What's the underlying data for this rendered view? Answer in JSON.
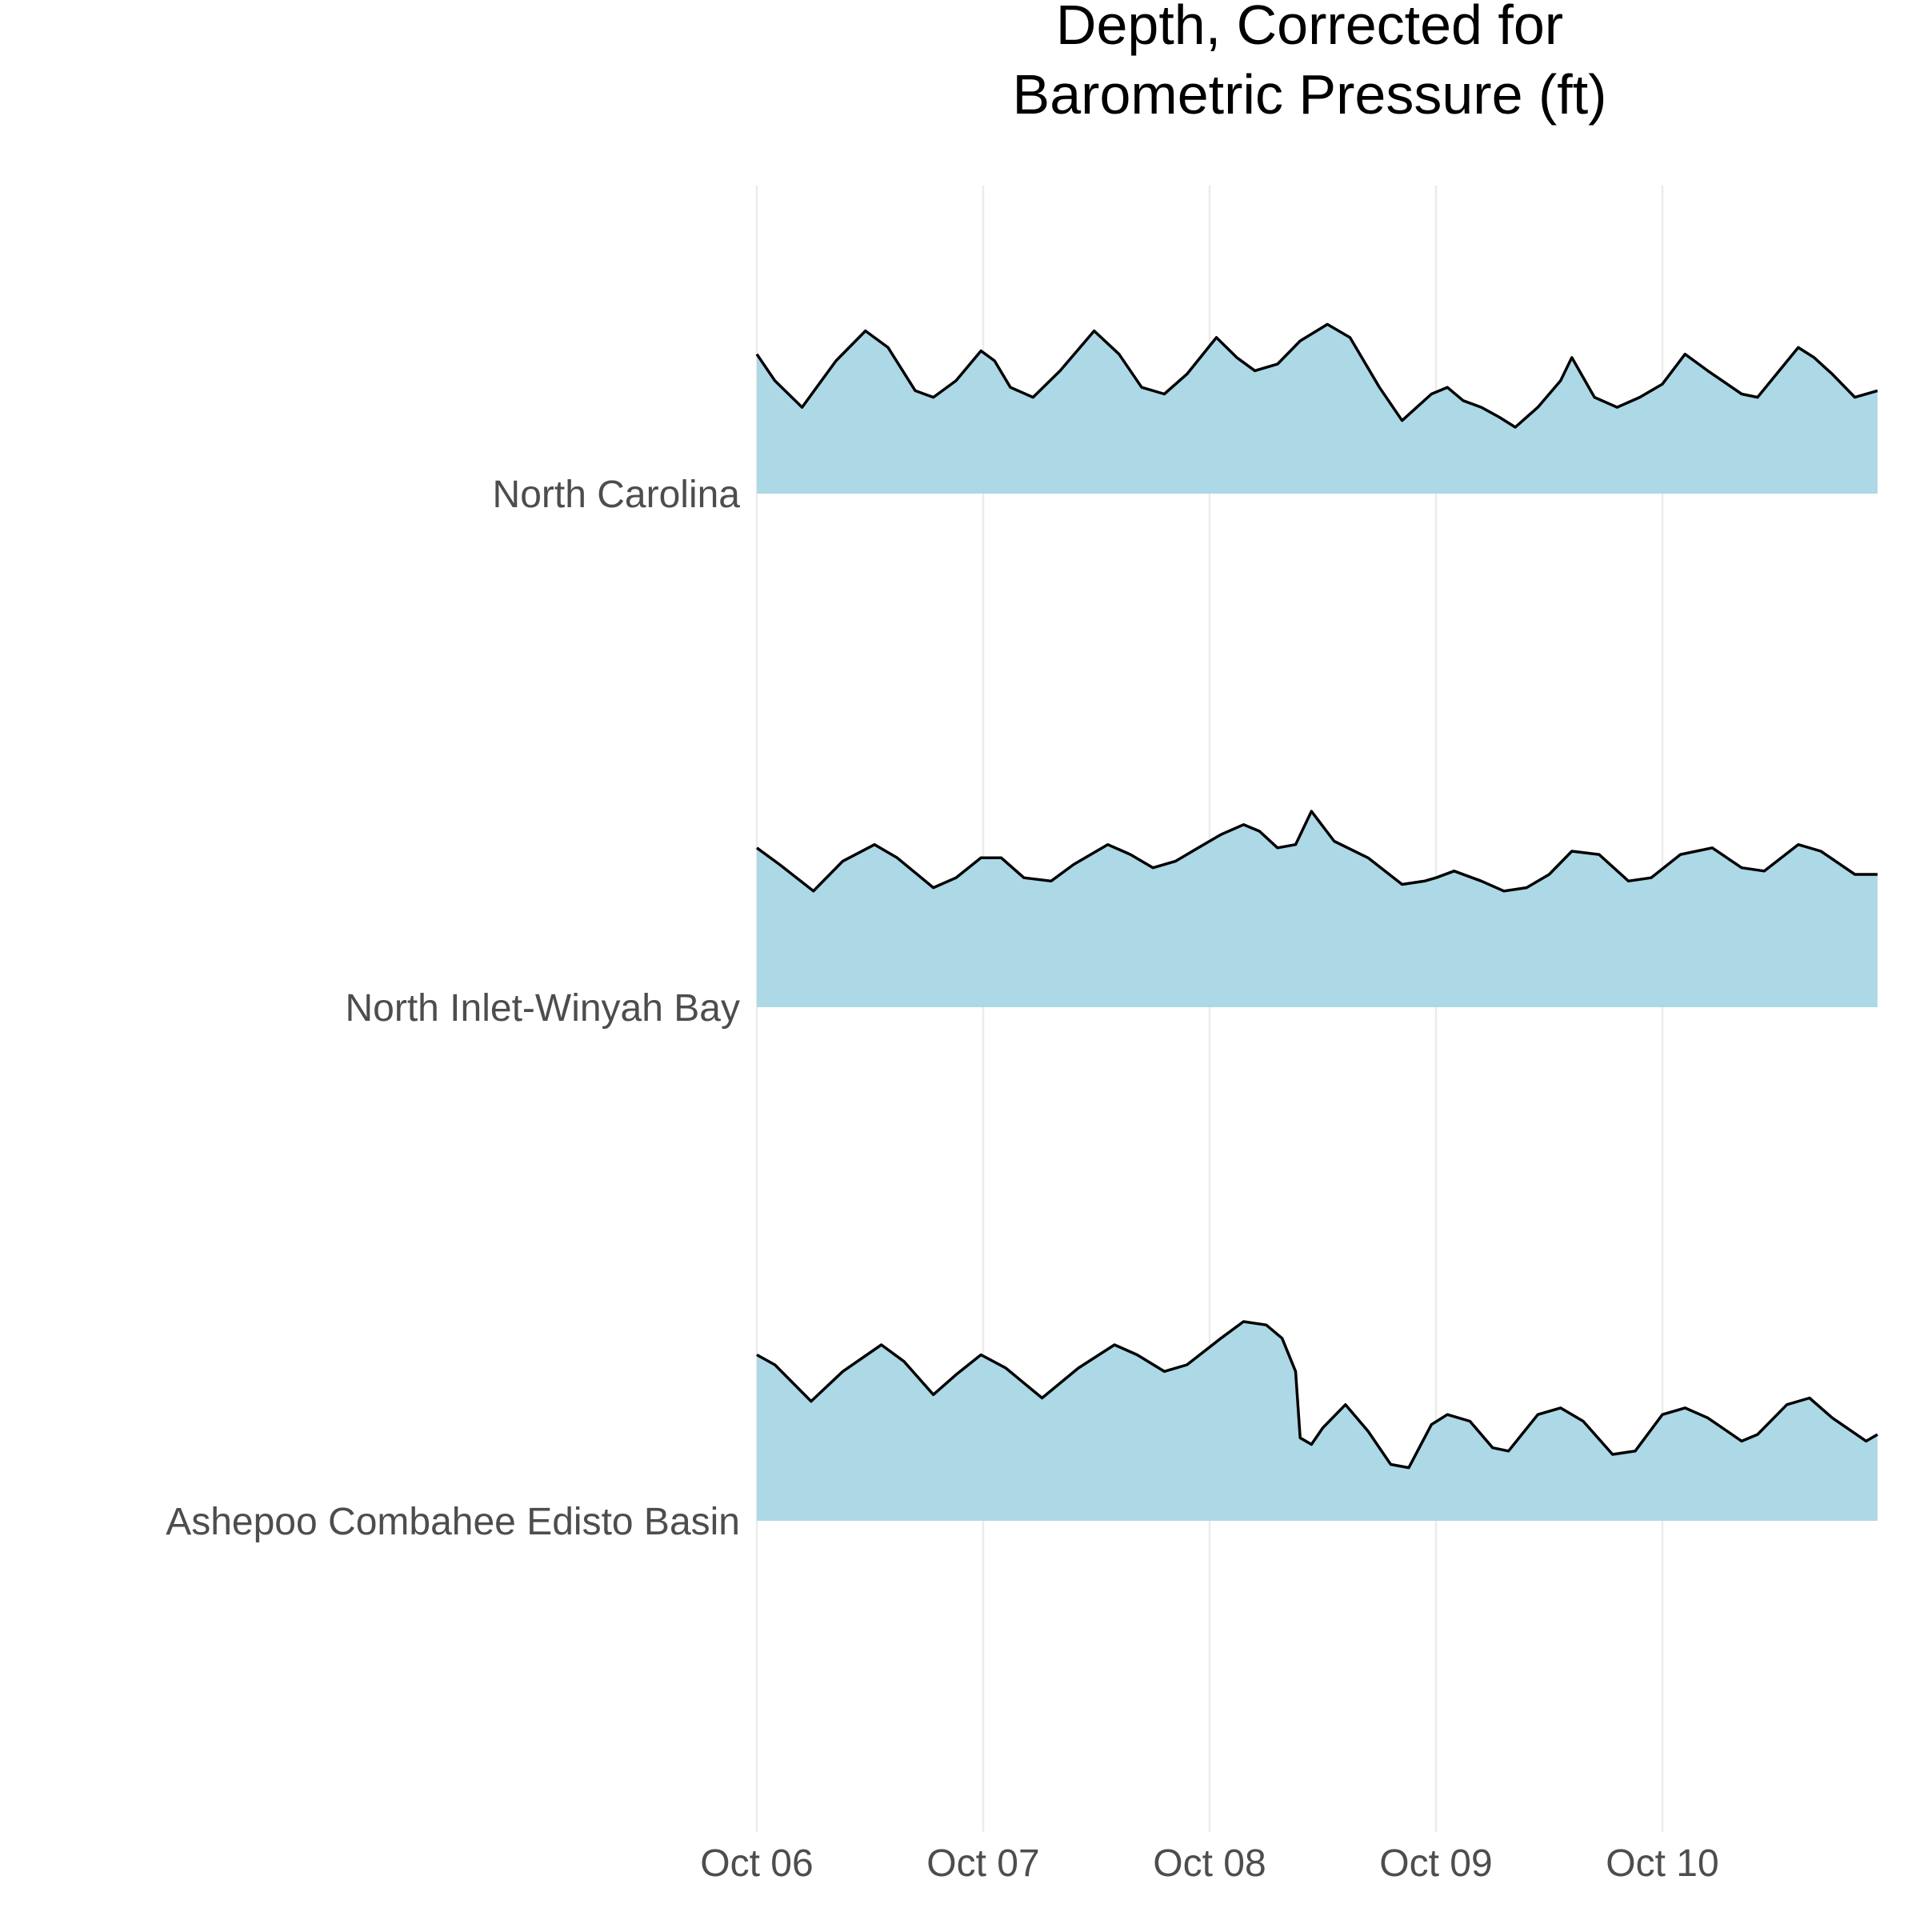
{
  "chart_data": {
    "type": "area",
    "subtype": "ridgeline",
    "title_lines": [
      "Depth, Corrected for",
      "Barometric Pressure (ft)"
    ],
    "x_ticks": [
      "Oct 06",
      "Oct 07",
      "Oct 08",
      "Oct 09",
      "Oct 10"
    ],
    "x_range_days": [
      "Oct 06",
      "Oct 10 ~23:00"
    ],
    "grid": "vertical-only",
    "fill_color": "#add8e6",
    "line_color": "#000000",
    "series": [
      {
        "name": "North Carolina",
        "points": [
          [
            0.0,
            4.2
          ],
          [
            0.08,
            3.4
          ],
          [
            0.2,
            2.6
          ],
          [
            0.35,
            4.0
          ],
          [
            0.48,
            4.9
          ],
          [
            0.58,
            4.4
          ],
          [
            0.7,
            3.1
          ],
          [
            0.78,
            2.9
          ],
          [
            0.88,
            3.4
          ],
          [
            0.99,
            4.3
          ],
          [
            1.05,
            4.0
          ],
          [
            1.12,
            3.2
          ],
          [
            1.22,
            2.9
          ],
          [
            1.34,
            3.7
          ],
          [
            1.49,
            4.9
          ],
          [
            1.6,
            4.2
          ],
          [
            1.7,
            3.2
          ],
          [
            1.8,
            3.0
          ],
          [
            1.9,
            3.6
          ],
          [
            2.03,
            4.7
          ],
          [
            2.12,
            4.1
          ],
          [
            2.2,
            3.7
          ],
          [
            2.3,
            3.9
          ],
          [
            2.4,
            4.6
          ],
          [
            2.52,
            5.1
          ],
          [
            2.62,
            4.7
          ],
          [
            2.75,
            3.2
          ],
          [
            2.85,
            2.2
          ],
          [
            2.98,
            3.0
          ],
          [
            3.05,
            3.2
          ],
          [
            3.12,
            2.8
          ],
          [
            3.2,
            2.6
          ],
          [
            3.28,
            2.3
          ],
          [
            3.35,
            2.0
          ],
          [
            3.45,
            2.6
          ],
          [
            3.55,
            3.4
          ],
          [
            3.6,
            4.1
          ],
          [
            3.7,
            2.9
          ],
          [
            3.8,
            2.6
          ],
          [
            3.9,
            2.9
          ],
          [
            4.0,
            3.3
          ],
          [
            4.1,
            4.2
          ],
          [
            4.2,
            3.7
          ],
          [
            4.35,
            3.0
          ],
          [
            4.42,
            2.9
          ],
          [
            4.6,
            4.4
          ],
          [
            4.67,
            4.1
          ],
          [
            4.75,
            3.6
          ],
          [
            4.85,
            2.9
          ],
          [
            4.95,
            3.1
          ]
        ]
      },
      {
        "name": "North Inlet-Winyah Bay",
        "points": [
          [
            0.0,
            4.8
          ],
          [
            0.1,
            4.3
          ],
          [
            0.25,
            3.5
          ],
          [
            0.38,
            4.4
          ],
          [
            0.52,
            4.9
          ],
          [
            0.62,
            4.5
          ],
          [
            0.78,
            3.6
          ],
          [
            0.88,
            3.9
          ],
          [
            0.99,
            4.5
          ],
          [
            1.08,
            4.5
          ],
          [
            1.18,
            3.9
          ],
          [
            1.3,
            3.8
          ],
          [
            1.4,
            4.3
          ],
          [
            1.55,
            4.9
          ],
          [
            1.65,
            4.6
          ],
          [
            1.75,
            4.2
          ],
          [
            1.85,
            4.4
          ],
          [
            1.95,
            4.8
          ],
          [
            2.05,
            5.2
          ],
          [
            2.15,
            5.5
          ],
          [
            2.22,
            5.3
          ],
          [
            2.3,
            4.8
          ],
          [
            2.38,
            4.9
          ],
          [
            2.45,
            5.9
          ],
          [
            2.55,
            5.0
          ],
          [
            2.7,
            4.5
          ],
          [
            2.85,
            3.7
          ],
          [
            2.95,
            3.8
          ],
          [
            3.0,
            3.9
          ],
          [
            3.08,
            4.1
          ],
          [
            3.2,
            3.8
          ],
          [
            3.3,
            3.5
          ],
          [
            3.4,
            3.6
          ],
          [
            3.5,
            4.0
          ],
          [
            3.6,
            4.7
          ],
          [
            3.72,
            4.6
          ],
          [
            3.85,
            3.8
          ],
          [
            3.95,
            3.9
          ],
          [
            4.08,
            4.6
          ],
          [
            4.22,
            4.8
          ],
          [
            4.35,
            4.2
          ],
          [
            4.45,
            4.1
          ],
          [
            4.6,
            4.9
          ],
          [
            4.7,
            4.7
          ],
          [
            4.85,
            4.0
          ],
          [
            4.95,
            4.0
          ]
        ]
      },
      {
        "name": "Ashepoo Combahee Edisto Basin",
        "points": [
          [
            0.0,
            5.0
          ],
          [
            0.08,
            4.7
          ],
          [
            0.24,
            3.6
          ],
          [
            0.38,
            4.5
          ],
          [
            0.55,
            5.3
          ],
          [
            0.65,
            4.8
          ],
          [
            0.78,
            3.8
          ],
          [
            0.88,
            4.4
          ],
          [
            0.99,
            5.0
          ],
          [
            1.1,
            4.6
          ],
          [
            1.26,
            3.7
          ],
          [
            1.42,
            4.6
          ],
          [
            1.58,
            5.3
          ],
          [
            1.68,
            5.0
          ],
          [
            1.8,
            4.5
          ],
          [
            1.9,
            4.7
          ],
          [
            2.05,
            5.5
          ],
          [
            2.15,
            6.0
          ],
          [
            2.25,
            5.9
          ],
          [
            2.32,
            5.5
          ],
          [
            2.38,
            4.5
          ],
          [
            2.4,
            2.5
          ],
          [
            2.45,
            2.3
          ],
          [
            2.5,
            2.8
          ],
          [
            2.6,
            3.5
          ],
          [
            2.7,
            2.7
          ],
          [
            2.8,
            1.7
          ],
          [
            2.88,
            1.6
          ],
          [
            2.98,
            2.9
          ],
          [
            3.05,
            3.2
          ],
          [
            3.15,
            3.0
          ],
          [
            3.25,
            2.2
          ],
          [
            3.32,
            2.1
          ],
          [
            3.45,
            3.2
          ],
          [
            3.55,
            3.4
          ],
          [
            3.65,
            3.0
          ],
          [
            3.78,
            2.0
          ],
          [
            3.88,
            2.1
          ],
          [
            4.0,
            3.2
          ],
          [
            4.1,
            3.4
          ],
          [
            4.2,
            3.1
          ],
          [
            4.35,
            2.4
          ],
          [
            4.42,
            2.6
          ],
          [
            4.55,
            3.5
          ],
          [
            4.65,
            3.7
          ],
          [
            4.75,
            3.1
          ],
          [
            4.9,
            2.4
          ],
          [
            4.95,
            2.6
          ]
        ]
      }
    ]
  }
}
